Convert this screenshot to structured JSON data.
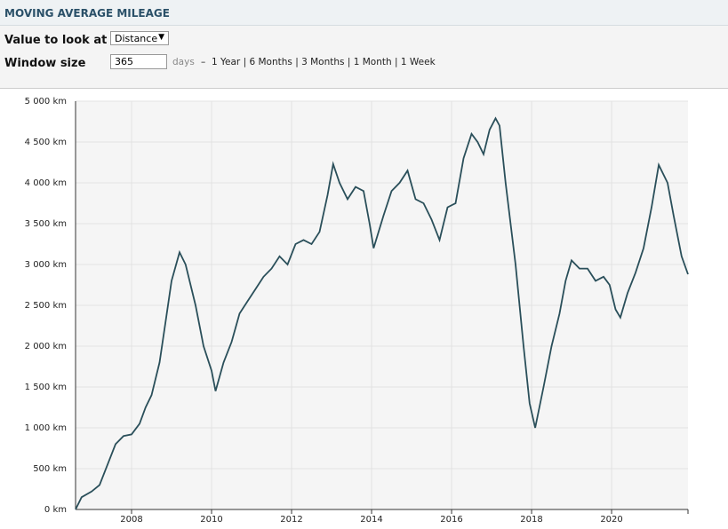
{
  "header": {
    "title": "MOVING AVERAGE MILEAGE"
  },
  "controls": {
    "value_label": "Value to look at",
    "value_option": "Distance",
    "window_label": "Window size",
    "window_value": "365",
    "window_unit": "days",
    "separator": "–",
    "presets": [
      "1 Year",
      "6 Months",
      "3 Months",
      "1 Month",
      "1 Week"
    ]
  },
  "chart_data": {
    "type": "line",
    "xlim": [
      2006.6,
      2021.91
    ],
    "xticks": [
      2008,
      2010,
      2012,
      2014,
      2016,
      2018,
      2020
    ],
    "ylim": [
      0,
      5000
    ],
    "yticks": [
      {
        "value": 0,
        "label": "0 km"
      },
      {
        "value": 500,
        "label": "500 km"
      },
      {
        "value": 1000,
        "label": "1 000 km"
      },
      {
        "value": 1500,
        "label": "1 500 km"
      },
      {
        "value": 2000,
        "label": "2 000 km"
      },
      {
        "value": 2500,
        "label": "2 500 km"
      },
      {
        "value": 3000,
        "label": "3 000 km"
      },
      {
        "value": 3500,
        "label": "3 500 km"
      },
      {
        "value": 4000,
        "label": "4 000 km"
      },
      {
        "value": 4500,
        "label": "4 500 km"
      },
      {
        "value": 5000,
        "label": "5 000 km"
      }
    ],
    "grid": true,
    "color": "#2a4f5a",
    "x": [
      2006.6,
      2006.75,
      2007.0,
      2007.2,
      2007.4,
      2007.6,
      2007.8,
      2008.0,
      2008.2,
      2008.35,
      2008.5,
      2008.7,
      2008.85,
      2009.0,
      2009.2,
      2009.35,
      2009.6,
      2009.8,
      2010.0,
      2010.1,
      2010.3,
      2010.5,
      2010.7,
      2010.9,
      2011.1,
      2011.3,
      2011.5,
      2011.7,
      2011.9,
      2012.1,
      2012.3,
      2012.5,
      2012.7,
      2012.9,
      2013.04,
      2013.2,
      2013.4,
      2013.6,
      2013.8,
      2013.95,
      2014.05,
      2014.3,
      2014.5,
      2014.7,
      2014.9,
      2015.1,
      2015.3,
      2015.5,
      2015.7,
      2015.9,
      2016.1,
      2016.3,
      2016.5,
      2016.65,
      2016.8,
      2016.95,
      2017.1,
      2017.2,
      2017.35,
      2017.6,
      2017.8,
      2017.95,
      2018.09,
      2018.3,
      2018.5,
      2018.7,
      2018.85,
      2019.0,
      2019.2,
      2019.4,
      2019.6,
      2019.8,
      2019.95,
      2020.1,
      2020.22,
      2020.4,
      2020.6,
      2020.8,
      2021.0,
      2021.18,
      2021.4,
      2021.55,
      2021.75,
      2021.91
    ],
    "values": [
      0,
      150,
      220,
      300,
      550,
      800,
      900,
      920,
      1050,
      1250,
      1400,
      1800,
      2300,
      2800,
      3150,
      3000,
      2500,
      2000,
      1700,
      1450,
      1800,
      2050,
      2400,
      2550,
      2700,
      2850,
      2950,
      3100,
      3000,
      3250,
      3300,
      3250,
      3400,
      3850,
      4230,
      4000,
      3800,
      3950,
      3900,
      3500,
      3200,
      3600,
      3900,
      4000,
      4150,
      3800,
      3750,
      3550,
      3300,
      3700,
      3750,
      4300,
      4600,
      4500,
      4350,
      4650,
      4790,
      4700,
      4000,
      3000,
      2000,
      1300,
      1000,
      1500,
      2000,
      2400,
      2800,
      3050,
      2950,
      2950,
      2800,
      2850,
      2750,
      2450,
      2350,
      2650,
      2900,
      3200,
      3700,
      4220,
      4000,
      3600,
      3100,
      2880
    ]
  }
}
